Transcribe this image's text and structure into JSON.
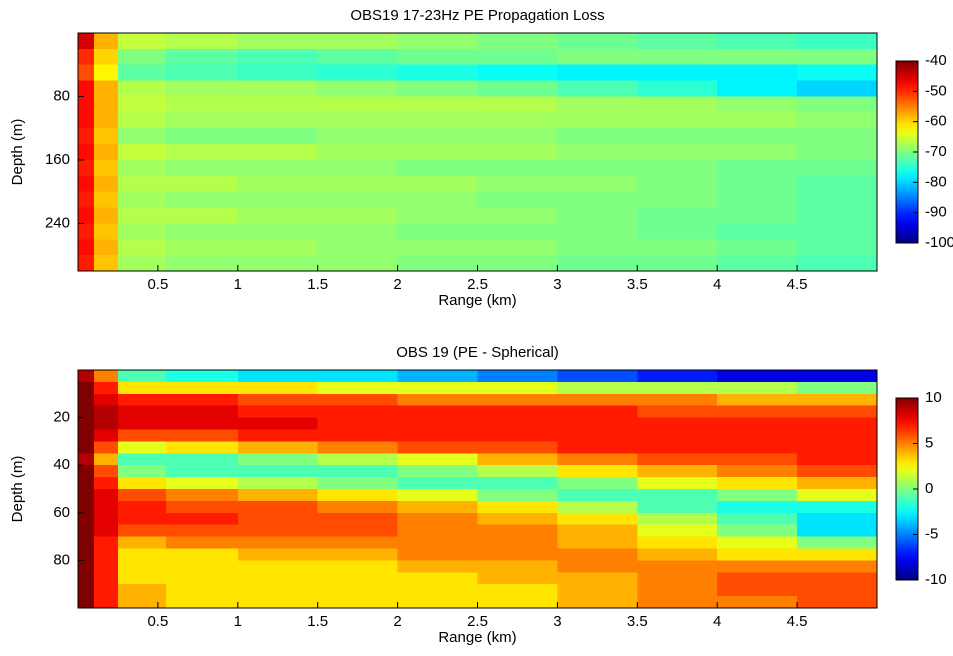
{
  "chart_data": [
    {
      "type": "heatmap",
      "title": "OBS19 17-23Hz PE Propagation Loss",
      "xlabel": "Range (km)",
      "ylabel": "Depth (m)",
      "x": [
        0.05,
        0.15,
        0.35,
        0.75,
        1.25,
        1.75,
        2.25,
        2.75,
        3.25,
        3.75,
        4.25,
        4.75
      ],
      "y": [
        10,
        30,
        50,
        70,
        90,
        110,
        130,
        150,
        170,
        190,
        210,
        230,
        250,
        270,
        290
      ],
      "z": [
        [
          -45,
          -58,
          -66,
          -67,
          -68,
          -68,
          -69,
          -70,
          -71,
          -72,
          -73,
          -74
        ],
        [
          -50,
          -60,
          -70,
          -72,
          -73,
          -72,
          -71,
          -71,
          -70,
          -70,
          -70,
          -70
        ],
        [
          -52,
          -62,
          -72,
          -73,
          -74,
          -75,
          -76,
          -77,
          -78,
          -78,
          -78,
          -77
        ],
        [
          -48,
          -58,
          -67,
          -68,
          -68,
          -69,
          -70,
          -71,
          -73,
          -75,
          -78,
          -80
        ],
        [
          -48,
          -58,
          -66,
          -67,
          -67,
          -67,
          -67,
          -67,
          -68,
          -68,
          -69,
          -70
        ],
        [
          -48,
          -58,
          -67,
          -68,
          -68,
          -68,
          -68,
          -68,
          -68,
          -68,
          -68,
          -69
        ],
        [
          -49,
          -59,
          -69,
          -70,
          -70,
          -69,
          -69,
          -69,
          -70,
          -70,
          -70,
          -70
        ],
        [
          -48,
          -58,
          -66,
          -67,
          -67,
          -68,
          -68,
          -68,
          -69,
          -69,
          -69,
          -70
        ],
        [
          -49,
          -59,
          -68,
          -69,
          -69,
          -69,
          -70,
          -70,
          -70,
          -70,
          -71,
          -71
        ],
        [
          -48,
          -58,
          -67,
          -67,
          -68,
          -68,
          -68,
          -69,
          -69,
          -70,
          -71,
          -72
        ],
        [
          -49,
          -59,
          -68,
          -69,
          -69,
          -69,
          -69,
          -70,
          -70,
          -70,
          -71,
          -72
        ],
        [
          -48,
          -58,
          -67,
          -67,
          -68,
          -68,
          -69,
          -69,
          -70,
          -71,
          -71,
          -72
        ],
        [
          -49,
          -59,
          -68,
          -69,
          -69,
          -69,
          -70,
          -70,
          -70,
          -71,
          -72,
          -72
        ],
        [
          -48,
          -58,
          -67,
          -68,
          -68,
          -69,
          -69,
          -69,
          -70,
          -70,
          -71,
          -72
        ],
        [
          -49,
          -59,
          -68,
          -69,
          -69,
          -69,
          -70,
          -70,
          -71,
          -71,
          -72,
          -73
        ]
      ],
      "xlim": [
        0,
        5
      ],
      "ylim": [
        0,
        300
      ],
      "y_inverted": true,
      "xticks": [
        0.5,
        1,
        1.5,
        2,
        2.5,
        3,
        3.5,
        4,
        4.5
      ],
      "yticks": [
        80,
        160,
        240
      ],
      "colormap": "jet",
      "clim": [
        -100,
        -40
      ],
      "cticks": [
        -100,
        -90,
        -80,
        -70,
        -60,
        -50,
        -40
      ]
    },
    {
      "type": "heatmap",
      "title": "OBS 19 (PE - Spherical)",
      "xlabel": "Range (km)",
      "ylabel": "Depth (m)",
      "x": [
        0.05,
        0.15,
        0.35,
        0.75,
        1.25,
        1.75,
        2.25,
        2.75,
        3.25,
        3.75,
        4.25,
        4.75
      ],
      "y": [
        2.5,
        7.5,
        12.5,
        17.5,
        22.5,
        27.5,
        32.5,
        37.5,
        42.5,
        47.5,
        52.5,
        57.5,
        62.5,
        67.5,
        72.5,
        77.5,
        82.5,
        87.5,
        92.5,
        97.5
      ],
      "z": [
        [
          9,
          5,
          -1,
          -2,
          -3,
          -3,
          -4,
          -5,
          -6,
          -7,
          -8,
          -8
        ],
        [
          10,
          7,
          3,
          3,
          3,
          2,
          2,
          2,
          1,
          1,
          1,
          0
        ],
        [
          10,
          8,
          7,
          7,
          6,
          6,
          5,
          5,
          5,
          5,
          4,
          4
        ],
        [
          10,
          9,
          8,
          8,
          7,
          7,
          7,
          7,
          7,
          6,
          6,
          6
        ],
        [
          10,
          9,
          8,
          8,
          8,
          7,
          7,
          7,
          7,
          7,
          7,
          7
        ],
        [
          10,
          8,
          6,
          6,
          7,
          7,
          7,
          7,
          7,
          7,
          7,
          7
        ],
        [
          10,
          6,
          2,
          3,
          4,
          5,
          6,
          6,
          7,
          7,
          7,
          7
        ],
        [
          9,
          4,
          -1,
          -1,
          0,
          1,
          2,
          4,
          5,
          6,
          6,
          7
        ],
        [
          10,
          6,
          0,
          -1,
          -1,
          -1,
          0,
          1,
          3,
          4,
          5,
          6
        ],
        [
          10,
          7,
          3,
          2,
          1,
          0,
          -1,
          -1,
          0,
          2,
          3,
          4
        ],
        [
          10,
          8,
          6,
          5,
          4,
          3,
          2,
          0,
          -1,
          -1,
          0,
          2
        ],
        [
          10,
          8,
          7,
          6,
          6,
          5,
          4,
          3,
          1,
          -1,
          -2,
          -2
        ],
        [
          10,
          8,
          7,
          7,
          6,
          6,
          5,
          4,
          3,
          1,
          -1,
          -3
        ],
        [
          10,
          8,
          6,
          6,
          6,
          6,
          5,
          5,
          4,
          2,
          0,
          -3
        ],
        [
          10,
          7,
          4,
          5,
          5,
          5,
          5,
          5,
          4,
          3,
          2,
          0
        ],
        [
          10,
          7,
          3,
          3,
          4,
          4,
          5,
          5,
          5,
          4,
          3,
          3
        ],
        [
          10,
          7,
          3,
          3,
          3,
          3,
          4,
          4,
          5,
          5,
          5,
          5
        ],
        [
          10,
          7,
          3,
          3,
          3,
          3,
          3,
          4,
          4,
          5,
          6,
          6
        ],
        [
          10,
          7,
          4,
          3,
          3,
          3,
          3,
          3,
          4,
          5,
          6,
          6
        ],
        [
          10,
          7,
          4,
          3,
          3,
          3,
          3,
          3,
          4,
          5,
          5,
          6
        ]
      ],
      "xlim": [
        0,
        5
      ],
      "ylim": [
        0,
        100
      ],
      "y_inverted": true,
      "xticks": [
        0.5,
        1,
        1.5,
        2,
        2.5,
        3,
        3.5,
        4,
        4.5
      ],
      "yticks": [
        20,
        40,
        60,
        80
      ],
      "colormap": "jet",
      "clim": [
        -10,
        10
      ],
      "cticks": [
        -10,
        -5,
        0,
        5,
        10
      ]
    }
  ]
}
